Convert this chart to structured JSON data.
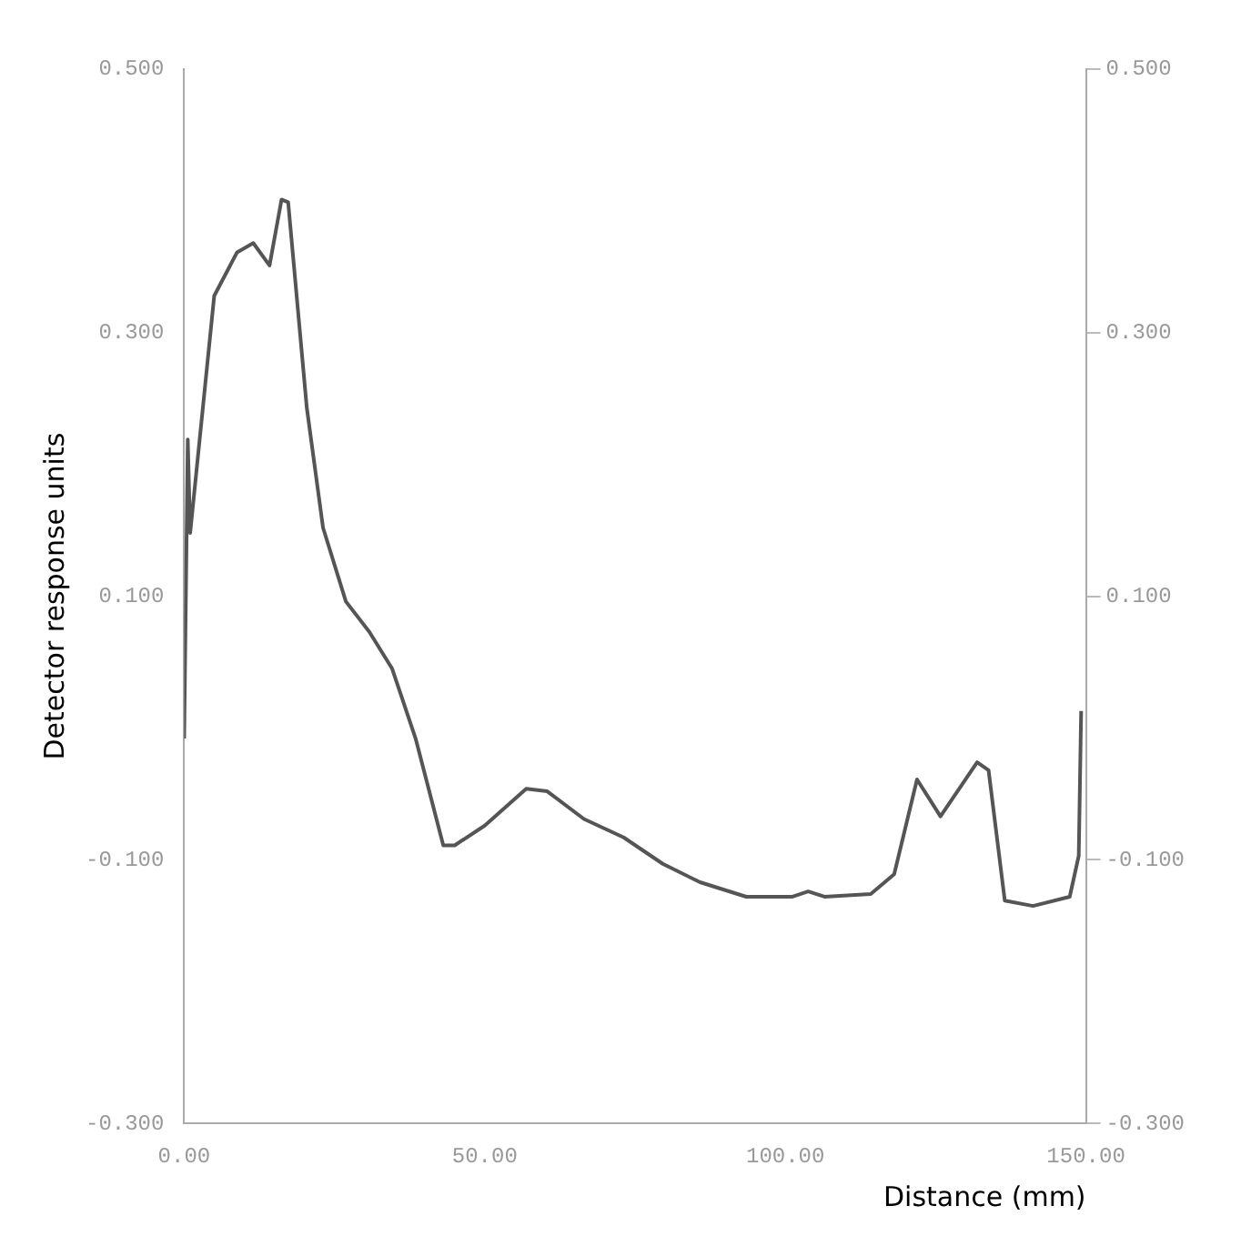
{
  "chart_data": {
    "type": "line",
    "xlabel": "Distance (mm)",
    "ylabel": "Detector response units",
    "xlim": [
      0,
      150
    ],
    "xticks": [
      {
        "value": 0,
        "label": "0.00"
      },
      {
        "value": 50,
        "label": "50.00"
      },
      {
        "value": 100,
        "label": "100.00"
      },
      {
        "value": 150,
        "label": "150.00"
      }
    ],
    "ylim": [
      -0.3,
      0.5
    ],
    "yticks": [
      {
        "value": -0.3,
        "label": "-0.300"
      },
      {
        "value": -0.1,
        "label": "-0.100"
      },
      {
        "value": 0.1,
        "label": "0.100"
      },
      {
        "value": 0.3,
        "label": "0.300"
      },
      {
        "value": 0.5,
        "label": "0.500"
      }
    ],
    "y2lim": [
      -0.3,
      0.5
    ],
    "y2ticks": [
      {
        "value": -0.3,
        "label": "-0.300"
      },
      {
        "value": -0.1,
        "label": "-0.100"
      },
      {
        "value": 0.1,
        "label": "0.100"
      },
      {
        "value": 0.3,
        "label": "0.300"
      },
      {
        "value": 0.5,
        "label": "0.500"
      }
    ],
    "grid": false,
    "legend": false,
    "marker": "none",
    "line_style": "solid",
    "series": [
      {
        "color": "#555555",
        "x": [
          0,
          0.6,
          1.0,
          5.0,
          8.8,
          11.5,
          14.2,
          16.2,
          17.3,
          20.4,
          23.1,
          26.9,
          30.8,
          34.6,
          38.5,
          43.1,
          45.0,
          50.0,
          56.9,
          60.4,
          66.5,
          73.1,
          79.6,
          85.8,
          93.5,
          101.2,
          103.8,
          106.5,
          114.2,
          118.1,
          121.9,
          125.8,
          131.9,
          133.8,
          136.5,
          141.2,
          147.3,
          148.8,
          149.2
        ],
        "values": [
          -0.008,
          0.219,
          0.148,
          0.328,
          0.361,
          0.368,
          0.351,
          0.401,
          0.399,
          0.243,
          0.152,
          0.096,
          0.073,
          0.045,
          -0.008,
          -0.089,
          -0.089,
          -0.074,
          -0.046,
          -0.048,
          -0.069,
          -0.083,
          -0.103,
          -0.117,
          -0.128,
          -0.128,
          -0.124,
          -0.128,
          -0.126,
          -0.111,
          -0.039,
          -0.067,
          -0.026,
          -0.032,
          -0.131,
          -0.135,
          -0.128,
          -0.097,
          0.013
        ]
      }
    ]
  }
}
